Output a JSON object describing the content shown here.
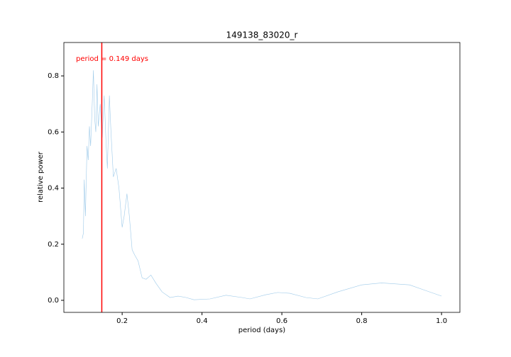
{
  "chart_data": {
    "type": "line",
    "title": "149138_83020_r",
    "x_label": "period (days)",
    "y_label": "relative power",
    "series": [
      {
        "color": "#9ecae9",
        "x": [
          0.1,
          0.103,
          0.105,
          0.108,
          0.112,
          0.115,
          0.118,
          0.121,
          0.125,
          0.128,
          0.131,
          0.134,
          0.137,
          0.14,
          0.145,
          0.15,
          0.155,
          0.16,
          0.163,
          0.168,
          0.172,
          0.178,
          0.185,
          0.192,
          0.2,
          0.205,
          0.212,
          0.218,
          0.225,
          0.232,
          0.24,
          0.25,
          0.26,
          0.272,
          0.285,
          0.3,
          0.32,
          0.34,
          0.36,
          0.38,
          0.42,
          0.46,
          0.5,
          0.52,
          0.56,
          0.59,
          0.62,
          0.66,
          0.69,
          0.74,
          0.8,
          0.85,
          0.92,
          0.96,
          1.0
        ],
        "values": [
          0.22,
          0.24,
          0.43,
          0.3,
          0.55,
          0.5,
          0.62,
          0.55,
          0.7,
          0.82,
          0.65,
          0.6,
          0.77,
          0.62,
          0.7,
          0.58,
          0.73,
          0.55,
          0.47,
          0.73,
          0.6,
          0.44,
          0.47,
          0.4,
          0.26,
          0.3,
          0.38,
          0.3,
          0.18,
          0.16,
          0.14,
          0.08,
          0.075,
          0.09,
          0.06,
          0.03,
          0.01,
          0.015,
          0.01,
          0.002,
          0.005,
          0.018,
          0.01,
          0.005,
          0.02,
          0.028,
          0.025,
          0.01,
          0.005,
          0.03,
          0.055,
          0.062,
          0.055,
          0.035,
          0.015
        ]
      }
    ],
    "vline": {
      "x": 0.149,
      "color": "#ff0000",
      "label": "period = 0.149 days"
    },
    "xlim": [
      0.054,
      1.046
    ],
    "ylim": [
      -0.043,
      0.919
    ],
    "xticks": [
      0.2,
      0.4,
      0.6,
      0.8,
      {
        "value": 1,
        "label": "1.0"
      }
    ],
    "yticks": [
      {
        "value": 0,
        "label": "0.0"
      },
      0.2,
      0.4,
      0.6,
      0.8
    ]
  }
}
